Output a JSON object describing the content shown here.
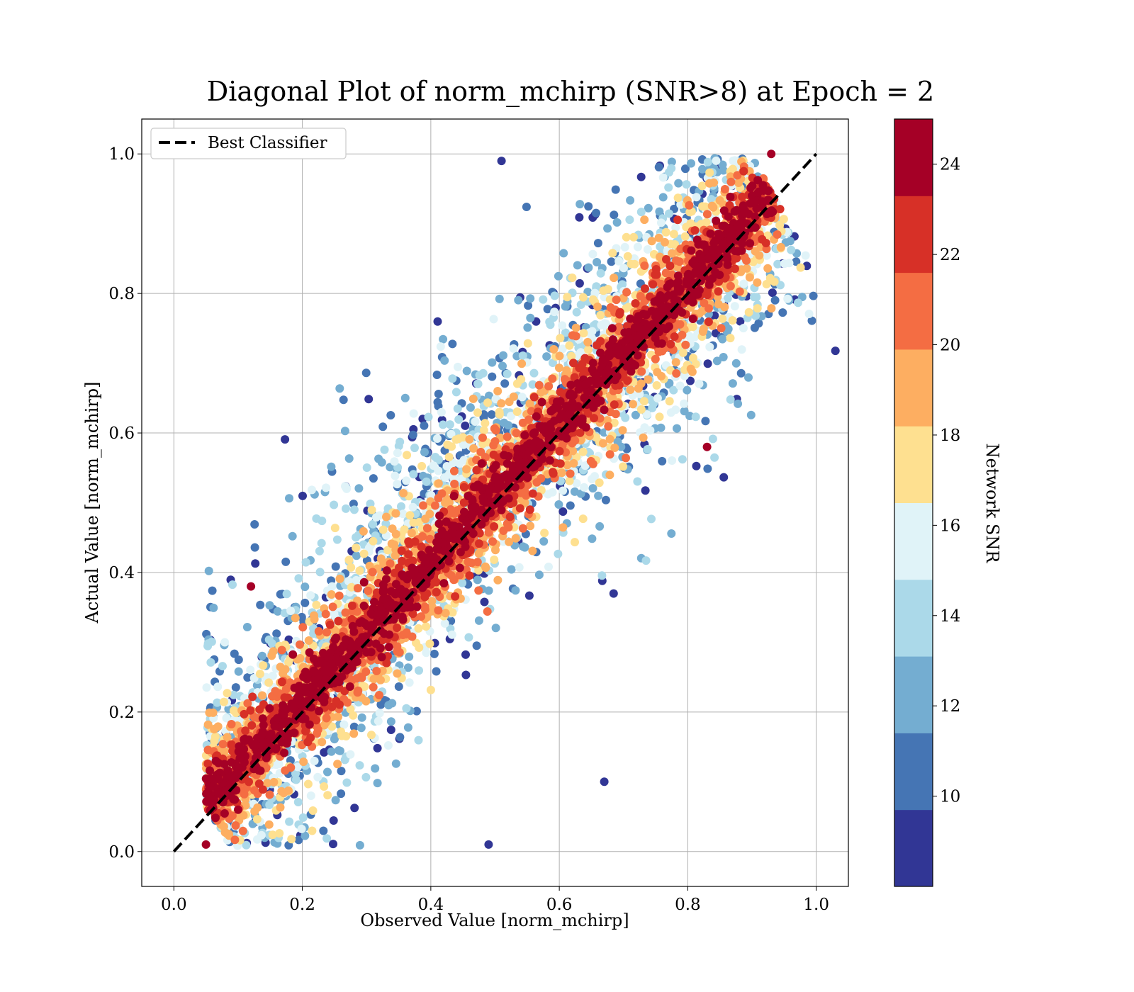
{
  "chart_data": {
    "type": "scatter",
    "title": "Diagonal Plot of norm_mchirp (SNR>8) at Epoch = 2",
    "xlabel": "Observed Value [norm_mchirp]",
    "ylabel": "Actual Value [norm_mchirp]",
    "xlim": [
      -0.05,
      1.05
    ],
    "ylim": [
      -0.05,
      1.05
    ],
    "xticks": [
      "0.0",
      "0.2",
      "0.4",
      "0.6",
      "0.8",
      "1.0"
    ],
    "yticks": [
      "0.0",
      "0.2",
      "0.4",
      "0.6",
      "0.8",
      "1.0"
    ],
    "grid": true,
    "legend": {
      "position": "top-left",
      "entries": [
        "Best Classifier"
      ]
    },
    "reference_line": {
      "name": "Best Classifier",
      "x": [
        0.0,
        1.0
      ],
      "y": [
        0.0,
        1.0
      ],
      "style": "dashed",
      "color": "#000000"
    },
    "colorbar": {
      "label": "Network SNR",
      "range": [
        8,
        25
      ],
      "ticks": [
        "10",
        "12",
        "14",
        "16",
        "18",
        "20",
        "22",
        "24"
      ],
      "colors": [
        "#313695",
        "#4575b4",
        "#74add1",
        "#abd9e9",
        "#e0f3f8",
        "#fee090",
        "#fdae61",
        "#f46d43",
        "#d73027",
        "#a50026"
      ]
    },
    "series": [
      {
        "color_by": "Network SNR",
        "description_points": [
          {
            "x": 0.05,
            "y": 0.01
          },
          {
            "x": 0.1,
            "y": 0.06
          },
          {
            "x": 0.2,
            "y": 0.19
          },
          {
            "x": 0.3,
            "y": 0.3
          },
          {
            "x": 0.4,
            "y": 0.4
          },
          {
            "x": 0.5,
            "y": 0.52
          },
          {
            "x": 0.6,
            "y": 0.62
          },
          {
            "x": 0.7,
            "y": 0.7
          },
          {
            "x": 0.8,
            "y": 0.79
          },
          {
            "x": 0.9,
            "y": 0.94
          },
          {
            "x": 0.51,
            "y": 0.99
          },
          {
            "x": 0.67,
            "y": 0.1
          },
          {
            "x": 0.12,
            "y": 0.38
          },
          {
            "x": 0.83,
            "y": 0.58
          },
          {
            "x": 0.93,
            "y": 1.0
          },
          {
            "x": 0.49,
            "y": 0.01
          }
        ]
      }
    ]
  }
}
